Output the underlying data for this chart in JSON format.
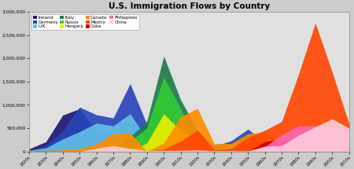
{
  "title": "U.S. Immigration Flows by Country",
  "decades": [
    "1820s",
    "1830s",
    "1840s",
    "1850s",
    "1860s",
    "1870s",
    "1880s",
    "1890s",
    "1900s",
    "1910s",
    "1920s",
    "1930s",
    "1940s",
    "1950s",
    "1960s",
    "1970s",
    "1980s",
    "1990s",
    "2000s",
    "2010s"
  ],
  "series": [
    {
      "name": "Ireland",
      "color": "#1a1472",
      "values": [
        54338,
        207381,
        780719,
        914119,
        435778,
        436871,
        655482,
        388416,
        339065,
        146181,
        220591,
        13167,
        19789,
        48362,
        37461,
        11490,
        31969,
        56950,
        23483,
        10000
      ]
    },
    {
      "name": "Germany",
      "color": "#2645b8",
      "values": [
        6761,
        124726,
        434626,
        951667,
        787468,
        718182,
        1452970,
        579072,
        341498,
        143945,
        412202,
        114058,
        226578,
        477765,
        190796,
        74414,
        91961,
        92606,
        73983,
        40000
      ]
    },
    {
      "name": "U.K.",
      "color": "#62c0e8",
      "values": [
        25079,
        75810,
        267044,
        423974,
        606896,
        548043,
        807357,
        271538,
        525950,
        341408,
        339570,
        49610,
        131794,
        202824,
        213822,
        137374,
        159873,
        170620,
        140000,
        90000
      ]
    },
    {
      "name": "Italy",
      "color": "#1a7a4a",
      "values": [
        408,
        2253,
        1870,
        9231,
        11725,
        55759,
        307309,
        651893,
        2045877,
        1109524,
        455315,
        68028,
        57661,
        185491,
        214111,
        129368,
        32900,
        67254,
        50000,
        20000
      ]
    },
    {
      "name": "Russia",
      "color": "#33cc33",
      "values": [
        75,
        277,
        551,
        457,
        2512,
        39284,
        213282,
        505290,
        1597306,
        921201,
        73077,
        1356,
        571,
        671,
        2465,
        38961,
        57677,
        462874,
        100000,
        40000
      ]
    },
    {
      "name": "Hungary",
      "color": "#eeee00",
      "values": [
        0,
        0,
        0,
        0,
        0,
        0,
        0,
        181288,
        808511,
        442693,
        274450,
        0,
        0,
        36637,
        5401,
        6874,
        6545,
        11300,
        9000,
        3000
      ]
    },
    {
      "name": "Canada",
      "color": "#ff8c00",
      "values": [
        2277,
        13624,
        41723,
        59309,
        153878,
        383640,
        393304,
        3311,
        179226,
        742185,
        924515,
        162703,
        171718,
        377952,
        413310,
        169939,
        156938,
        191987,
        214695,
        110000
      ]
    },
    {
      "name": "Mexico",
      "color": "#ff4500",
      "values": [
        4817,
        6599,
        3271,
        3078,
        2191,
        5162,
        1913,
        971,
        49642,
        219004,
        459287,
        32709,
        60589,
        299811,
        453937,
        640294,
        1655843,
        2757418,
        1704166,
        600000
      ]
    },
    {
      "name": "Cuba",
      "color": "#cc0000",
      "values": [
        0,
        0,
        0,
        0,
        0,
        0,
        0,
        0,
        0,
        0,
        0,
        0,
        0,
        0,
        208536,
        264863,
        144578,
        169322,
        280000,
        50000
      ]
    },
    {
      "name": "Philippines",
      "color": "#ff69b4",
      "values": [
        0,
        0,
        0,
        0,
        0,
        0,
        0,
        0,
        0,
        0,
        0,
        0,
        0,
        0,
        98376,
        354987,
        548764,
        549672,
        545478,
        400000
      ]
    },
    {
      "name": "China",
      "color": "#ffccdd",
      "values": [
        0,
        0,
        0,
        0,
        64301,
        123201,
        61711,
        15268,
        20605,
        21278,
        29907,
        13626,
        16709,
        9657,
        109771,
        124160,
        346747,
        529000,
        700000,
        500000
      ]
    }
  ],
  "ylim": [
    0,
    3000000
  ],
  "yticks": [
    0,
    500000,
    1000000,
    1500000,
    2000000,
    2500000,
    3000000
  ],
  "ytick_labels": [
    "0",
    "500,000",
    "1,000,000",
    "1,500,000",
    "2,000,000",
    "2,500,000",
    "3,000,000"
  ],
  "bg_color": "#cccccc",
  "plot_bg_color": "#e0e0e0",
  "legend_order": [
    [
      "Ireland",
      "#1a1472"
    ],
    [
      "Germany",
      "#2645b8"
    ],
    [
      "U.K.",
      "#62c0e8"
    ],
    [
      "Italy",
      "#1a7a4a"
    ],
    [
      "Russia",
      "#33cc33"
    ],
    [
      "Hungary",
      "#eeee00"
    ],
    [
      "Canada",
      "#ff8c00"
    ],
    [
      "Mexico",
      "#ff4500"
    ],
    [
      "Cuba",
      "#cc0000"
    ],
    [
      "Philippines",
      "#ff69b4"
    ],
    [
      "China",
      "#ffccdd"
    ]
  ]
}
